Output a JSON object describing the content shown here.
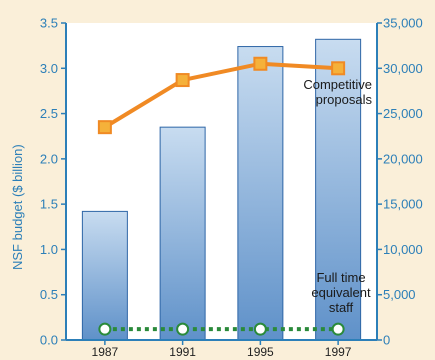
{
  "chart_data": {
    "type": "bar",
    "categories": [
      "1987",
      "1991",
      "1995",
      "1997"
    ],
    "ylabel": "NSF budget ($ billion)",
    "ylim": [
      0,
      3.5
    ],
    "yticks": [
      "0.0",
      "0.5",
      "1.0",
      "1.5",
      "2.0",
      "2.5",
      "3.0",
      "3.5"
    ],
    "y2lim": [
      0,
      35000
    ],
    "y2ticks": [
      "0",
      "5,000",
      "10,000",
      "15,000",
      "20,000",
      "25,000",
      "30,000",
      "35,000"
    ],
    "series": [
      {
        "type": "bar",
        "axis": "left",
        "values": [
          1.42,
          2.35,
          3.24,
          3.32
        ]
      },
      {
        "type": "line",
        "axis": "right",
        "name": "Competitive proposals",
        "label_lines": [
          "Competitive",
          "proposals"
        ],
        "values": [
          23500,
          28700,
          30500,
          30000
        ]
      },
      {
        "type": "line",
        "axis": "right",
        "name": "Full time equivalent staff",
        "label_lines": [
          "Full time",
          "equivalent",
          "staff"
        ],
        "values": [
          1200,
          1200,
          1200,
          1200
        ]
      }
    ],
    "grid": false,
    "colors": {
      "background": "#faefd9",
      "plot_background": "#ffffff",
      "axis": "#2c7fb8",
      "bar_top": "#c8dcf0",
      "bar_bottom": "#5f91c9",
      "bar_stroke": "#2e66a6",
      "proposals_line": "#f08a24",
      "proposals_marker": "#f5b13a",
      "staff_line": "#2a8a3a",
      "staff_marker": "#ffffff",
      "text": "#2c7fb8",
      "label_text": "#1a1a1a"
    }
  }
}
